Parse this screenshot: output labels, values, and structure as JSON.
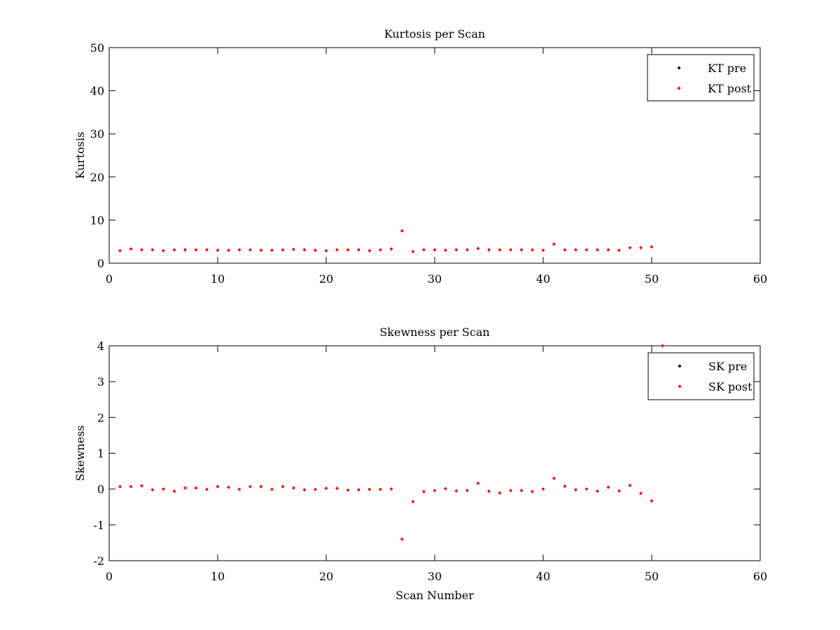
{
  "chart_data": [
    {
      "type": "scatter",
      "title": "Kurtosis per Scan",
      "xlabel": "",
      "ylabel": "Kurtosis",
      "xlim": [
        0,
        60
      ],
      "ylim": [
        0,
        50
      ],
      "xticks": [
        "0",
        "10",
        "20",
        "30",
        "40",
        "50",
        "60"
      ],
      "yticks": [
        "0",
        "10",
        "20",
        "30",
        "40",
        "50"
      ],
      "grid": false,
      "legend_position": "top-right",
      "series": [
        {
          "name": "KT pre",
          "color": "#000000",
          "x": [],
          "y": []
        },
        {
          "name": "KT post",
          "color": "#ff0000",
          "x": [
            1,
            2,
            3,
            4,
            5,
            6,
            7,
            8,
            9,
            10,
            11,
            12,
            13,
            14,
            15,
            16,
            17,
            18,
            19,
            20,
            21,
            22,
            23,
            24,
            25,
            26,
            27,
            28,
            29,
            30,
            31,
            32,
            33,
            34,
            35,
            36,
            37,
            38,
            39,
            40,
            41,
            42,
            43,
            44,
            45,
            46,
            47,
            48,
            49,
            50
          ],
          "y": [
            2.9,
            3.3,
            3.1,
            3.1,
            2.9,
            3.1,
            3.1,
            3.1,
            3.1,
            3.0,
            3.0,
            3.1,
            3.1,
            3.0,
            3.0,
            3.1,
            3.2,
            3.1,
            3.0,
            2.9,
            3.1,
            3.1,
            3.1,
            2.9,
            3.1,
            3.3,
            7.5,
            2.7,
            3.1,
            3.1,
            3.0,
            3.1,
            3.1,
            3.4,
            3.1,
            3.1,
            3.1,
            3.1,
            3.1,
            3.0,
            4.4,
            3.1,
            3.1,
            3.1,
            3.1,
            3.1,
            3.0,
            3.6,
            3.6,
            3.8
          ]
        }
      ]
    },
    {
      "type": "scatter",
      "title": "Skewness per Scan",
      "xlabel": "Scan Number",
      "ylabel": "Skewness",
      "xlim": [
        0,
        60
      ],
      "ylim": [
        -2,
        4
      ],
      "xticks": [
        "0",
        "10",
        "20",
        "30",
        "40",
        "50",
        "60"
      ],
      "yticks": [
        "-2",
        "-1",
        "0",
        "1",
        "2",
        "3",
        "4"
      ],
      "grid": false,
      "legend_position": "top-right",
      "series": [
        {
          "name": "SK pre",
          "color": "#000000",
          "x": [],
          "y": []
        },
        {
          "name": "SK post",
          "color": "#ff0000",
          "x": [
            1,
            2,
            3,
            4,
            5,
            6,
            7,
            8,
            9,
            10,
            11,
            12,
            13,
            14,
            15,
            16,
            17,
            18,
            19,
            20,
            21,
            22,
            23,
            24,
            25,
            26,
            27,
            28,
            29,
            30,
            31,
            32,
            33,
            34,
            35,
            36,
            37,
            38,
            39,
            40,
            41,
            42,
            43,
            44,
            45,
            46,
            47,
            48,
            49,
            50,
            51
          ],
          "y": [
            0.07,
            0.07,
            0.09,
            -0.02,
            0.0,
            -0.06,
            0.03,
            0.03,
            -0.01,
            0.07,
            0.05,
            -0.01,
            0.07,
            0.07,
            -0.01,
            0.07,
            0.03,
            -0.02,
            -0.01,
            0.02,
            0.02,
            -0.03,
            -0.02,
            -0.01,
            -0.01,
            0.0,
            -1.4,
            -0.35,
            -0.07,
            -0.04,
            0.01,
            -0.05,
            -0.04,
            0.16,
            -0.06,
            -0.11,
            -0.04,
            -0.04,
            -0.07,
            0.0,
            0.3,
            0.08,
            -0.02,
            0.0,
            -0.06,
            0.05,
            -0.05,
            0.1,
            -0.12,
            -0.33,
            4.0
          ]
        }
      ]
    }
  ]
}
